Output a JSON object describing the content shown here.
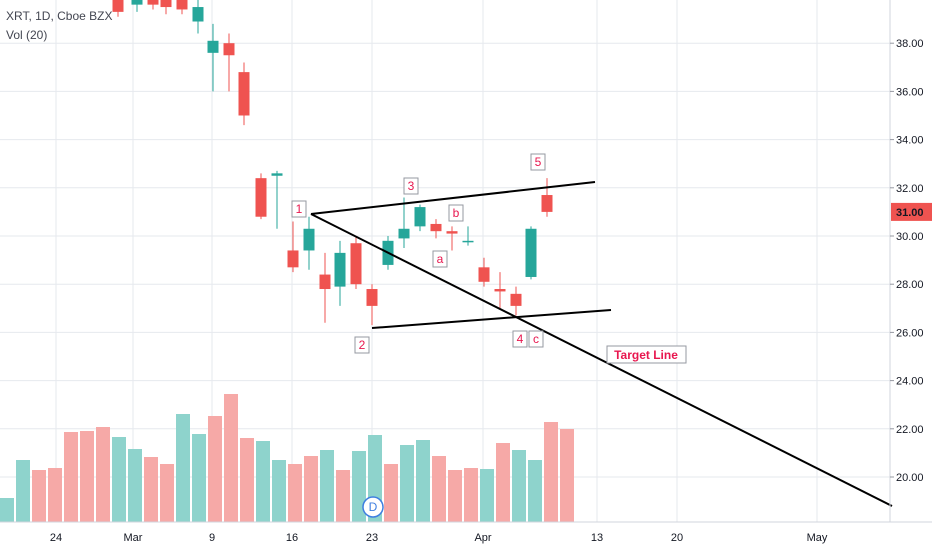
{
  "header": {
    "symbol_line": "XRT, 1D, Cboe BZX",
    "volume_line": "Vol (20)"
  },
  "colors": {
    "up": "#26a69a",
    "down": "#ef5350",
    "vol_up": "#8ed3cc",
    "vol_down": "#f6a9a7",
    "grid": "#e6e9ee",
    "trendline": "#000000",
    "label_text": "#e8174f",
    "price_tag": "#ef5350",
    "event_marker": "#3f7fe0"
  },
  "chart_data": {
    "type": "candlestick",
    "title": "XRT, 1D, Cboe BZX",
    "y_axis": {
      "ticks": [
        "20.00",
        "22.00",
        "24.00",
        "26.00",
        "28.00",
        "30.00",
        "32.00",
        "34.00",
        "36.00",
        "38.00"
      ],
      "ylim": [
        18.6,
        39.8
      ]
    },
    "x_axis": {
      "ticks": [
        "24",
        "Mar",
        "9",
        "16",
        "23",
        "Apr",
        "13",
        "20",
        "May"
      ]
    },
    "last_price": "31.00",
    "candles": [
      {
        "date": "Feb 28",
        "open": 39.8,
        "close": 39.3,
        "high": 40.2,
        "low": 39.1
      },
      {
        "date": "Mar 2",
        "open": 39.6,
        "close": 39.9,
        "high": 40.3,
        "low": 39.3
      },
      {
        "date": "Mar 3",
        "open": 39.8,
        "close": 39.6,
        "high": 40.1,
        "low": 39.4
      },
      {
        "date": "Mar 4",
        "open": 39.9,
        "close": 39.5,
        "high": 40.1,
        "low": 39.2
      },
      {
        "date": "Mar 5",
        "open": 39.8,
        "close": 39.4,
        "high": 40.0,
        "low": 39.2
      },
      {
        "date": "Mar 6",
        "open": 38.9,
        "close": 39.5,
        "high": 39.8,
        "low": 38.4
      },
      {
        "date": "Mar 9",
        "open": 37.6,
        "close": 38.1,
        "high": 38.8,
        "low": 36.0
      },
      {
        "date": "Mar 10",
        "open": 38.0,
        "close": 37.5,
        "high": 38.4,
        "low": 36.0
      },
      {
        "date": "Mar 11",
        "open": 36.8,
        "close": 35.0,
        "high": 37.2,
        "low": 34.6
      },
      {
        "date": "Mar 12",
        "open": 32.4,
        "close": 30.8,
        "high": 32.6,
        "low": 30.7
      },
      {
        "date": "Mar 13",
        "open": 32.5,
        "close": 32.6,
        "high": 32.7,
        "low": 30.3
      },
      {
        "date": "Mar 16",
        "open": 29.4,
        "close": 28.7,
        "high": 30.6,
        "low": 28.5
      },
      {
        "date": "Mar 17",
        "open": 29.4,
        "close": 30.3,
        "high": 30.8,
        "low": 28.6
      },
      {
        "date": "Mar 18",
        "open": 28.4,
        "close": 27.8,
        "high": 29.3,
        "low": 26.4
      },
      {
        "date": "Mar 19",
        "open": 27.9,
        "close": 29.3,
        "high": 29.8,
        "low": 27.1
      },
      {
        "date": "Mar 20",
        "open": 29.7,
        "close": 28.0,
        "high": 30.0,
        "low": 27.8
      },
      {
        "date": "Mar 23",
        "open": 27.8,
        "close": 27.1,
        "high": 28.0,
        "low": 26.3
      },
      {
        "date": "Mar 24",
        "open": 28.8,
        "close": 29.8,
        "high": 30.0,
        "low": 28.6
      },
      {
        "date": "Mar 25",
        "open": 29.9,
        "close": 30.3,
        "high": 31.6,
        "low": 29.5
      },
      {
        "date": "Mar 26",
        "open": 30.4,
        "close": 31.2,
        "high": 31.3,
        "low": 30.2
      },
      {
        "date": "Mar 27",
        "open": 30.5,
        "close": 30.2,
        "high": 30.7,
        "low": 29.9
      },
      {
        "date": "Mar 30",
        "open": 30.2,
        "close": 30.1,
        "high": 30.4,
        "low": 29.4
      },
      {
        "date": "Mar 31",
        "open": 29.8,
        "close": 29.8,
        "high": 30.4,
        "low": 29.6
      },
      {
        "date": "Apr 1",
        "open": 28.7,
        "close": 28.1,
        "high": 29.1,
        "low": 27.9
      },
      {
        "date": "Apr 2",
        "open": 27.8,
        "close": 27.7,
        "high": 28.5,
        "low": 27.0
      },
      {
        "date": "Apr 3",
        "open": 27.6,
        "close": 27.1,
        "high": 27.9,
        "low": 26.7
      },
      {
        "date": "Apr 6",
        "open": 28.3,
        "close": 30.3,
        "high": 30.4,
        "low": 28.2
      },
      {
        "date": "Apr 7",
        "open": 31.7,
        "close": 31.0,
        "high": 32.4,
        "low": 30.8
      }
    ],
    "volume_bars": [
      "up",
      "up",
      "down",
      "down",
      "down",
      "down",
      "down",
      "up",
      "up",
      "down",
      "down",
      "up",
      "up",
      "down",
      "down",
      "down",
      "up",
      "up",
      "down",
      "down",
      "up",
      "down",
      "up",
      "up",
      "down",
      "up",
      "up",
      "down",
      "down",
      "down",
      "up",
      "down",
      "up",
      "up",
      "down",
      "down",
      "up",
      "down",
      "down",
      "down",
      "up",
      "down"
    ],
    "annotations": [
      {
        "label": "1"
      },
      {
        "label": "2"
      },
      {
        "label": "3"
      },
      {
        "label": "4"
      },
      {
        "label": "5"
      },
      {
        "label": "a"
      },
      {
        "label": "b"
      },
      {
        "label": "c"
      },
      {
        "label": "Target Line"
      },
      {
        "label": "D"
      }
    ],
    "grid": true
  }
}
